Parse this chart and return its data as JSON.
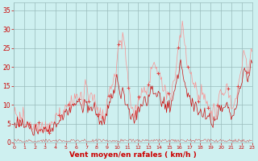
{
  "bg_color": "#cef0f0",
  "grid_color": "#99bbbb",
  "line_gust_color": "#ff8888",
  "line_avg_color": "#cc0000",
  "marker_color": "#dd4444",
  "xlabel": "Vent moyen/en rafales ( km/h )",
  "xlabel_color": "#cc0000",
  "tick_color": "#cc0000",
  "ylim": [
    0,
    37
  ],
  "yticks": [
    0,
    5,
    10,
    15,
    20,
    25,
    30,
    35
  ],
  "xtick_labels": [
    "0",
    "1",
    "2",
    "3",
    "4",
    "5",
    "6",
    "7",
    "8",
    "9",
    "10",
    "11",
    "12",
    "13",
    "14",
    "15",
    "16",
    "17",
    "18",
    "19",
    "20",
    "21",
    "22",
    "23"
  ],
  "n_hours": 24,
  "n_points": 288,
  "gust": [
    8,
    8,
    7,
    7,
    8,
    7,
    6,
    7,
    6,
    6,
    7,
    8,
    6,
    6,
    5,
    5,
    6,
    5,
    5,
    6,
    5,
    5,
    4,
    4,
    5,
    4,
    4,
    5,
    4,
    4,
    5,
    5,
    4,
    3,
    4,
    3,
    4,
    4,
    5,
    4,
    4,
    5,
    4,
    4,
    5,
    5,
    6,
    5,
    5,
    6,
    6,
    7,
    6,
    6,
    7,
    8,
    7,
    8,
    8,
    8,
    9,
    9,
    9,
    10,
    10,
    10,
    11,
    10,
    10,
    11,
    10,
    11,
    11,
    12,
    11,
    12,
    12,
    13,
    12,
    12,
    12,
    13,
    12,
    11,
    12,
    15,
    16,
    15,
    14,
    13,
    12,
    11,
    12,
    13,
    12,
    11,
    12,
    13,
    12,
    11,
    10,
    9,
    8,
    7,
    8,
    7,
    7,
    8,
    7,
    7,
    8,
    9,
    10,
    11,
    12,
    13,
    14,
    15,
    14,
    15,
    16,
    17,
    18,
    19,
    22,
    24,
    25,
    26,
    28,
    27,
    25,
    30,
    29,
    27,
    24,
    22,
    20,
    18,
    15,
    13,
    11,
    10,
    9,
    10,
    9,
    8,
    9,
    10,
    9,
    10,
    11,
    12,
    13,
    12,
    13,
    14,
    13,
    14,
    14,
    13,
    13,
    14,
    15,
    16,
    17,
    19,
    20,
    21,
    22,
    21,
    20,
    21,
    20,
    19,
    18,
    19,
    18,
    17,
    16,
    15,
    14,
    15,
    14,
    13,
    12,
    13,
    12,
    13,
    12,
    12,
    13,
    14,
    15,
    16,
    17,
    19,
    20,
    22,
    24,
    26,
    28,
    29,
    30,
    31,
    30,
    29,
    27,
    25,
    23,
    21,
    20,
    19,
    18,
    19,
    18,
    17,
    16,
    15,
    14,
    15,
    14,
    13,
    12,
    13,
    12,
    13,
    14,
    13,
    12,
    11,
    12,
    11,
    10,
    11,
    10,
    9,
    10,
    9,
    8,
    7,
    8,
    9,
    8,
    7,
    8,
    9,
    10,
    11,
    12,
    13,
    14,
    13,
    12,
    13,
    14,
    13,
    14,
    15,
    14,
    13,
    12,
    11,
    10,
    9,
    8,
    9,
    10,
    11,
    12,
    13,
    14,
    15,
    16,
    17,
    19,
    20,
    22,
    24,
    23,
    22,
    21,
    20,
    19,
    20,
    21,
    24,
    25,
    24
  ],
  "avg": [
    5,
    5,
    5,
    5,
    6,
    5,
    5,
    6,
    5,
    5,
    6,
    6,
    5,
    4,
    4,
    4,
    5,
    4,
    4,
    4,
    4,
    4,
    3,
    3,
    3,
    3,
    4,
    3,
    3,
    3,
    4,
    4,
    3,
    3,
    3,
    3,
    3,
    3,
    4,
    3,
    3,
    4,
    3,
    4,
    4,
    4,
    5,
    4,
    4,
    5,
    5,
    5,
    5,
    5,
    6,
    6,
    6,
    7,
    7,
    7,
    7,
    8,
    8,
    8,
    8,
    8,
    9,
    9,
    9,
    9,
    9,
    10,
    10,
    10,
    10,
    10,
    10,
    11,
    10,
    10,
    11,
    11,
    10,
    9,
    10,
    11,
    12,
    11,
    10,
    9,
    9,
    9,
    10,
    9,
    8,
    8,
    9,
    10,
    9,
    8,
    7,
    6,
    6,
    5,
    6,
    5,
    5,
    6,
    5,
    5,
    6,
    7,
    8,
    9,
    9,
    10,
    11,
    12,
    12,
    13,
    13,
    14,
    15,
    16,
    17,
    16,
    15,
    14,
    13,
    12,
    13,
    14,
    13,
    12,
    11,
    10,
    11,
    10,
    9,
    8,
    7,
    7,
    8,
    7,
    6,
    6,
    7,
    8,
    7,
    8,
    9,
    9,
    10,
    9,
    10,
    10,
    10,
    11,
    11,
    10,
    10,
    11,
    12,
    12,
    13,
    14,
    15,
    15,
    14,
    13,
    14,
    14,
    13,
    12,
    13,
    13,
    12,
    11,
    10,
    10,
    11,
    11,
    10,
    9,
    9,
    10,
    9,
    10,
    9,
    9,
    10,
    11,
    12,
    13,
    14,
    15,
    16,
    17,
    18,
    19,
    20,
    21,
    20,
    19,
    18,
    17,
    16,
    15,
    14,
    13,
    12,
    11,
    12,
    11,
    10,
    11,
    10,
    9,
    9,
    10,
    9,
    8,
    7,
    8,
    7,
    8,
    9,
    8,
    7,
    7,
    8,
    7,
    6,
    7,
    6,
    6,
    7,
    6,
    5,
    5,
    5,
    6,
    5,
    5,
    5,
    6,
    7,
    8,
    9,
    9,
    10,
    9,
    8,
    9,
    10,
    9,
    10,
    11,
    10,
    9,
    8,
    7,
    6,
    6,
    7,
    7,
    8,
    9,
    10,
    11,
    12,
    13,
    14,
    15,
    16,
    17,
    18,
    19,
    20,
    19,
    18,
    17,
    16,
    17,
    18,
    20,
    21,
    20
  ]
}
